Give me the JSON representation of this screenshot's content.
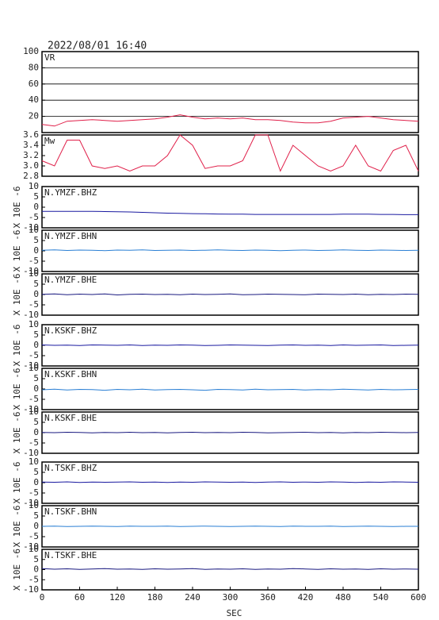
{
  "chart_data": [
    {
      "type": "line",
      "title": "2022/08/01 16:40",
      "annotation": "VR",
      "color": "#e0204a",
      "grid": true,
      "xlim": [
        0,
        600
      ],
      "ylim": [
        0,
        100
      ],
      "yticks": [
        20,
        40,
        60,
        80,
        100
      ],
      "x": [
        0,
        20,
        40,
        60,
        80,
        100,
        120,
        140,
        160,
        180,
        200,
        220,
        240,
        260,
        280,
        300,
        320,
        340,
        360,
        380,
        400,
        420,
        440,
        460,
        480,
        500,
        520,
        540,
        560,
        580,
        600
      ],
      "values": [
        10,
        8,
        14,
        15,
        16,
        15,
        14,
        15,
        16,
        17,
        19,
        22,
        19,
        17,
        18,
        17,
        18,
        16,
        16,
        15,
        13,
        12,
        12,
        14,
        18,
        19,
        20,
        18,
        16,
        15,
        14
      ]
    },
    {
      "type": "line",
      "annotation": "Mw",
      "color": "#e0204a",
      "xlim": [
        0,
        600
      ],
      "ylim": [
        2.8,
        3.6
      ],
      "yticks": [
        {
          "value": 2.8,
          "label": "2.8"
        },
        {
          "value": 3.0,
          "label": "3.0"
        },
        {
          "value": 3.2,
          "label": "3.2"
        },
        {
          "value": 3.4,
          "label": "3.4"
        },
        {
          "value": 3.6,
          "label": "3.6"
        }
      ],
      "x": [
        0,
        20,
        40,
        60,
        80,
        100,
        120,
        140,
        160,
        180,
        200,
        220,
        240,
        260,
        280,
        300,
        320,
        340,
        360,
        380,
        400,
        420,
        440,
        460,
        480,
        500,
        520,
        540,
        560,
        580,
        600
      ],
      "values": [
        3.1,
        3.0,
        3.5,
        3.5,
        3.0,
        2.95,
        3.0,
        2.9,
        3.0,
        3.0,
        3.2,
        3.6,
        3.4,
        2.95,
        3.0,
        3.0,
        3.1,
        3.6,
        3.6,
        2.9,
        3.4,
        3.2,
        3.0,
        2.9,
        3.0,
        3.4,
        3.0,
        2.9,
        3.3,
        3.4,
        2.9
      ]
    },
    {
      "type": "line",
      "annotation": "N.YMZF.BHZ",
      "ylabel": "X 10E -6",
      "color": "#1a1aa0",
      "xlim": [
        0,
        600
      ],
      "ylim": [
        -10,
        10
      ],
      "yticks": [
        -10,
        -5,
        0,
        5,
        10
      ],
      "x": [
        0,
        20,
        40,
        60,
        80,
        100,
        120,
        140,
        160,
        180,
        200,
        220,
        240,
        260,
        280,
        300,
        320,
        340,
        360,
        380,
        400,
        420,
        440,
        460,
        480,
        500,
        520,
        540,
        560,
        580,
        600
      ],
      "values": [
        -2,
        -2,
        -2,
        -2,
        -2,
        -2.1,
        -2.2,
        -2.3,
        -2.5,
        -2.7,
        -2.9,
        -3,
        -3.1,
        -3.2,
        -3.3,
        -3.4,
        -3.4,
        -3.5,
        -3.5,
        -3.5,
        -3.5,
        -3.5,
        -3.5,
        -3.5,
        -3.4,
        -3.4,
        -3.4,
        -3.5,
        -3.5,
        -3.6,
        -3.6
      ]
    },
    {
      "type": "line",
      "annotation": "N.YMZF.BHN",
      "ylabel": "X 10E -6",
      "color": "#2a7fd4",
      "xlim": [
        0,
        600
      ],
      "ylim": [
        -10,
        10
      ],
      "yticks": [
        -10,
        -5,
        0,
        5,
        10
      ],
      "x": [
        0,
        20,
        40,
        60,
        80,
        100,
        120,
        140,
        160,
        180,
        200,
        220,
        240,
        260,
        280,
        300,
        320,
        340,
        360,
        380,
        400,
        420,
        440,
        460,
        480,
        500,
        520,
        540,
        560,
        580,
        600
      ],
      "values": [
        0.3,
        0.5,
        0.2,
        0.4,
        0.3,
        0.1,
        0.4,
        0.3,
        0.5,
        0.2,
        0.3,
        0.4,
        0.2,
        0.3,
        0.5,
        0.3,
        0.2,
        0.4,
        0.3,
        0.1,
        0.3,
        0.4,
        0.2,
        0.3,
        0.5,
        0.3,
        0.2,
        0.4,
        0.3,
        0.2,
        0.3
      ]
    },
    {
      "type": "line",
      "annotation": "N.YMZF.BHE",
      "ylabel": "X 10E -6",
      "color": "#1a1a80",
      "xlim": [
        0,
        600
      ],
      "ylim": [
        -10,
        10
      ],
      "yticks": [
        -10,
        -5,
        0,
        5,
        10
      ],
      "x": [
        0,
        20,
        40,
        60,
        80,
        100,
        120,
        140,
        160,
        180,
        200,
        220,
        240,
        260,
        280,
        300,
        320,
        340,
        360,
        380,
        400,
        420,
        440,
        460,
        480,
        500,
        520,
        540,
        560,
        580,
        600
      ],
      "values": [
        0.1,
        0.3,
        -0.1,
        0.2,
        0,
        0.3,
        -0.2,
        0.1,
        0.2,
        0,
        0.1,
        -0.1,
        0.2,
        0,
        0.1,
        0.3,
        -0.1,
        0,
        0.2,
        0.1,
        0,
        -0.1,
        0.2,
        0.1,
        0,
        0.2,
        -0.1,
        0.1,
        0,
        0.2,
        0.1
      ]
    },
    {
      "type": "line",
      "annotation": "N.KSKF.BHZ",
      "ylabel": "X 10E -6",
      "color": "#1a1aa0",
      "xlim": [
        0,
        600
      ],
      "ylim": [
        -10,
        10
      ],
      "yticks": [
        -10,
        -5,
        0,
        5,
        10
      ],
      "x": [
        0,
        20,
        40,
        60,
        80,
        100,
        120,
        140,
        160,
        180,
        200,
        220,
        240,
        260,
        280,
        300,
        320,
        340,
        360,
        380,
        400,
        420,
        440,
        460,
        480,
        500,
        520,
        540,
        560,
        580,
        600
      ],
      "values": [
        0.2,
        0,
        0.1,
        -0.1,
        0.2,
        0.1,
        0,
        0.2,
        -0.1,
        0.1,
        0,
        0.2,
        0.1,
        -0.1,
        0,
        0.2,
        0.1,
        0,
        -0.1,
        0.1,
        0.2,
        0,
        0.1,
        -0.1,
        0.2,
        0,
        0.1,
        0.2,
        -0.1,
        0,
        0.1
      ]
    },
    {
      "type": "line",
      "annotation": "N.KSKF.BHN",
      "ylabel": "X 10E -6",
      "color": "#2a7fd4",
      "xlim": [
        0,
        600
      ],
      "ylim": [
        -10,
        10
      ],
      "yticks": [
        -10,
        -5,
        0,
        5,
        10
      ],
      "x": [
        0,
        20,
        40,
        60,
        80,
        100,
        120,
        140,
        160,
        180,
        200,
        220,
        240,
        260,
        280,
        300,
        320,
        340,
        360,
        380,
        400,
        420,
        440,
        460,
        480,
        500,
        520,
        540,
        560,
        580,
        600
      ],
      "values": [
        -0.4,
        -0.1,
        -0.5,
        -0.2,
        -0.3,
        -0.6,
        -0.2,
        -0.4,
        -0.1,
        -0.5,
        -0.3,
        -0.2,
        -0.4,
        -0.6,
        -0.2,
        -0.3,
        -0.5,
        -0.1,
        -0.4,
        -0.3,
        -0.2,
        -0.5,
        -0.3,
        -0.4,
        -0.1,
        -0.3,
        -0.5,
        -0.2,
        -0.4,
        -0.3,
        -0.2
      ]
    },
    {
      "type": "line",
      "annotation": "N.KSKF.BHE",
      "ylabel": "X 10E -6",
      "color": "#1a1a80",
      "xlim": [
        0,
        600
      ],
      "ylim": [
        -10,
        10
      ],
      "yticks": [
        -10,
        -5,
        0,
        5,
        10
      ],
      "x": [
        0,
        20,
        40,
        60,
        80,
        100,
        120,
        140,
        160,
        180,
        200,
        220,
        240,
        260,
        280,
        300,
        320,
        340,
        360,
        380,
        400,
        420,
        440,
        460,
        480,
        500,
        520,
        540,
        560,
        580,
        600
      ],
      "values": [
        0.1,
        0,
        0.2,
        0.1,
        -0.1,
        0.1,
        0,
        0.2,
        0,
        0.1,
        -0.1,
        0.1,
        0.2,
        0,
        0.1,
        0,
        0.2,
        0.1,
        -0.1,
        0,
        0.1,
        0.2,
        0,
        0.1,
        -0.1,
        0.1,
        0,
        0.2,
        0.1,
        0,
        0.1
      ]
    },
    {
      "type": "line",
      "annotation": "N.TSKF.BHZ",
      "ylabel": "X 10E -6",
      "color": "#1a1aa0",
      "xlim": [
        0,
        600
      ],
      "ylim": [
        -10,
        10
      ],
      "yticks": [
        -10,
        -5,
        0,
        5,
        10
      ],
      "x": [
        0,
        20,
        40,
        60,
        80,
        100,
        120,
        140,
        160,
        180,
        200,
        220,
        240,
        260,
        280,
        300,
        320,
        340,
        360,
        380,
        400,
        420,
        440,
        460,
        480,
        500,
        520,
        540,
        560,
        580,
        600
      ],
      "values": [
        0.3,
        0.2,
        0.4,
        0.1,
        0.3,
        0.2,
        0.3,
        0.4,
        0.2,
        0.3,
        0.1,
        0.3,
        0.2,
        0.4,
        0.3,
        0.2,
        0.3,
        0.1,
        0.3,
        0.4,
        0.2,
        0.3,
        0.2,
        0.4,
        0.3,
        0.1,
        0.3,
        0.2,
        0.4,
        0.3,
        0.2
      ]
    },
    {
      "type": "line",
      "annotation": "N.TSKF.BHN",
      "ylabel": "X 10E -6",
      "color": "#2a7fd4",
      "xlim": [
        0,
        600
      ],
      "ylim": [
        -10,
        10
      ],
      "yticks": [
        -10,
        -5,
        0,
        5,
        10
      ],
      "x": [
        0,
        20,
        40,
        60,
        80,
        100,
        120,
        140,
        160,
        180,
        200,
        220,
        240,
        260,
        280,
        300,
        320,
        340,
        360,
        380,
        400,
        420,
        440,
        460,
        480,
        500,
        520,
        540,
        560,
        580,
        600
      ],
      "values": [
        0,
        0.1,
        -0.1,
        0,
        0.1,
        0,
        -0.1,
        0.1,
        0,
        0,
        0.1,
        -0.1,
        0,
        0.1,
        0,
        -0.1,
        0,
        0.1,
        0,
        -0.1,
        0.1,
        0,
        0,
        0.1,
        -0.1,
        0,
        0.1,
        0,
        -0.1,
        0,
        0
      ]
    },
    {
      "type": "line",
      "annotation": "N.TSKF.BHE",
      "ylabel": "X 10E -6",
      "color": "#1a1a80",
      "xlabel": "SEC",
      "xlim": [
        0,
        600
      ],
      "ylim": [
        -10,
        10
      ],
      "yticks": [
        -10,
        -5,
        0,
        5,
        10
      ],
      "xticks": [
        0,
        60,
        120,
        180,
        240,
        300,
        360,
        420,
        480,
        540,
        600
      ],
      "x": [
        0,
        20,
        40,
        60,
        80,
        100,
        120,
        140,
        160,
        180,
        200,
        220,
        240,
        260,
        280,
        300,
        320,
        340,
        360,
        380,
        400,
        420,
        440,
        460,
        480,
        500,
        520,
        540,
        560,
        580,
        600
      ],
      "values": [
        0.5,
        0.2,
        0.4,
        0.1,
        0.3,
        0.5,
        0.2,
        0.3,
        0.1,
        0.4,
        0.2,
        0.3,
        0.5,
        0.1,
        0.3,
        0.2,
        0.4,
        0.1,
        0.3,
        0.2,
        0.5,
        0.3,
        0.1,
        0.4,
        0.2,
        0.3,
        0.1,
        0.4,
        0.2,
        0.3,
        0.2
      ]
    }
  ]
}
